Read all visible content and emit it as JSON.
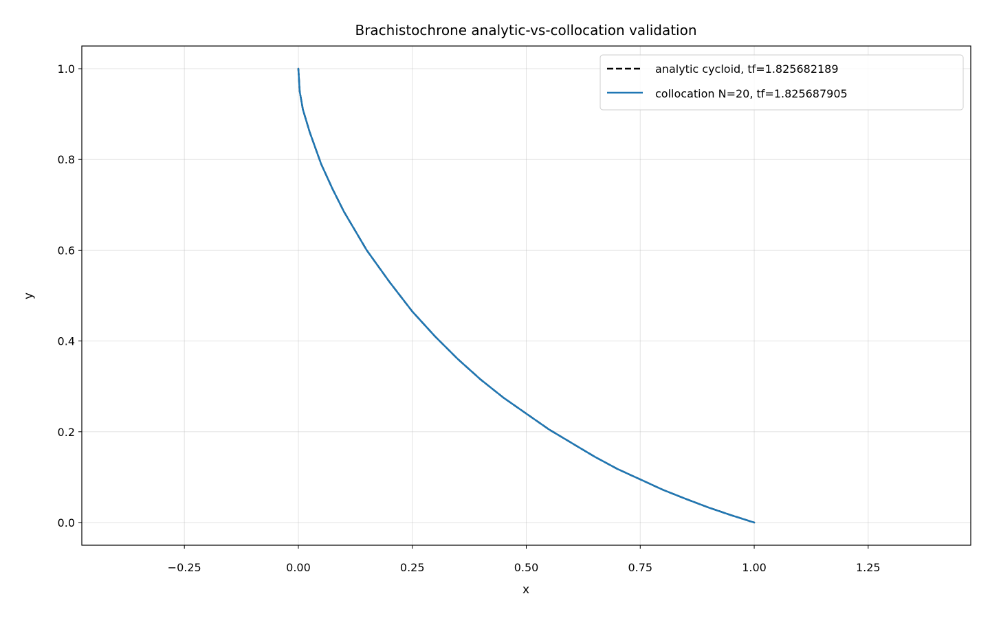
{
  "chart_data": {
    "type": "line",
    "title": "Brachistochrone analytic-vs-collocation validation",
    "xlabel": "x",
    "ylabel": "y",
    "xlim": [
      -0.475,
      1.475
    ],
    "ylim": [
      -0.05,
      1.05
    ],
    "xticks": [
      -0.25,
      0.0,
      0.25,
      0.5,
      0.75,
      1.0,
      1.25
    ],
    "xtick_labels": [
      "−0.25",
      "0.00",
      "0.25",
      "0.50",
      "0.75",
      "1.00",
      "1.25"
    ],
    "yticks": [
      0.0,
      0.2,
      0.4,
      0.6,
      0.8,
      1.0
    ],
    "ytick_labels": [
      "0.0",
      "0.2",
      "0.4",
      "0.6",
      "0.8",
      "1.0"
    ],
    "grid": true,
    "legend_position": "top-right",
    "series": [
      {
        "name": "analytic cycloid, tf=1.825682189",
        "color": "#000000",
        "style": "dashed",
        "x": [
          0.0,
          0.003,
          0.01,
          0.025,
          0.05,
          0.075,
          0.1,
          0.15,
          0.2,
          0.25,
          0.3,
          0.35,
          0.4,
          0.45,
          0.5,
          0.55,
          0.6,
          0.65,
          0.7,
          0.75,
          0.8,
          0.85,
          0.9,
          0.95,
          1.0
        ],
        "y": [
          1.0,
          0.95,
          0.91,
          0.86,
          0.79,
          0.735,
          0.685,
          0.6,
          0.53,
          0.465,
          0.41,
          0.36,
          0.315,
          0.275,
          0.24,
          0.205,
          0.175,
          0.145,
          0.118,
          0.095,
          0.072,
          0.052,
          0.033,
          0.016,
          0.0
        ]
      },
      {
        "name": "collocation N=20, tf=1.825687905",
        "color": "#1f77b4",
        "style": "solid",
        "x": [
          0.0,
          0.003,
          0.01,
          0.025,
          0.05,
          0.075,
          0.1,
          0.15,
          0.2,
          0.25,
          0.3,
          0.35,
          0.4,
          0.45,
          0.5,
          0.55,
          0.6,
          0.65,
          0.7,
          0.75,
          0.8,
          0.85,
          0.9,
          0.95,
          1.0
        ],
        "y": [
          1.0,
          0.95,
          0.91,
          0.86,
          0.79,
          0.735,
          0.685,
          0.6,
          0.53,
          0.465,
          0.41,
          0.36,
          0.315,
          0.275,
          0.24,
          0.205,
          0.175,
          0.145,
          0.118,
          0.095,
          0.072,
          0.052,
          0.033,
          0.016,
          0.0
        ]
      }
    ]
  }
}
